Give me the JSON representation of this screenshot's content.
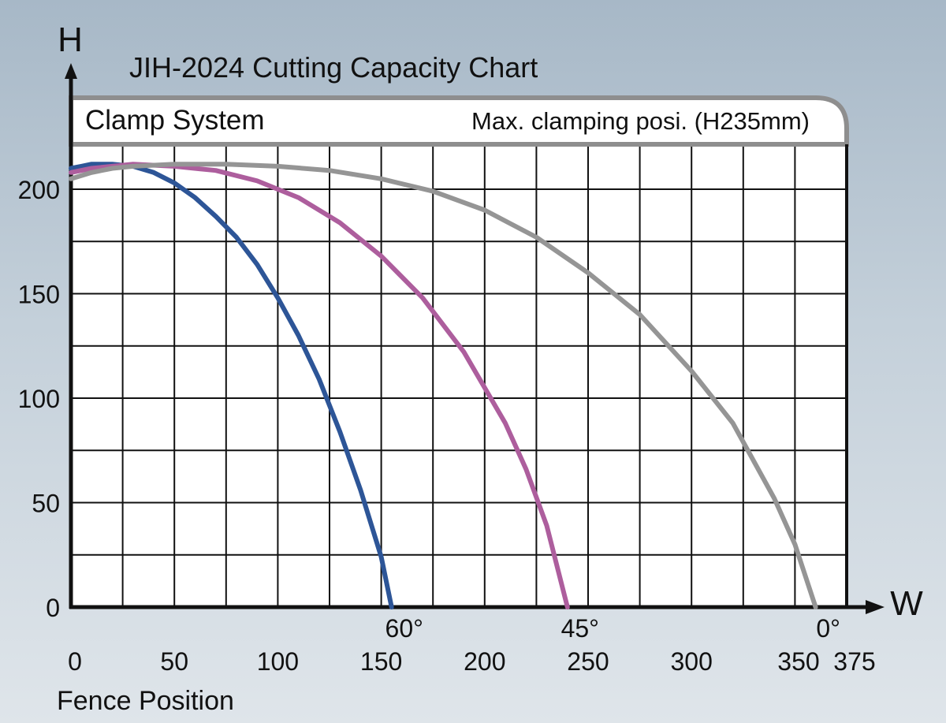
{
  "chart_data": {
    "type": "line",
    "title": "JIH-2024 Cutting Capacity Chart",
    "header_left": "Clamp System",
    "header_right": "Max. clamping posi. (H235mm)",
    "ylabel": "H",
    "xlabel_arrow": "W",
    "xlabel": "Fence Position",
    "xlim": [
      0,
      375
    ],
    "ylim": [
      0,
      200
    ],
    "x_ticks": [
      "0",
      "50",
      "100",
      "150",
      "200",
      "250",
      "300",
      "350",
      "375"
    ],
    "y_ticks": [
      "0",
      "50",
      "100",
      "150",
      "200"
    ],
    "grid": true,
    "series": [
      {
        "name": "60°",
        "color": "#2d5597",
        "x": [
          0,
          5,
          10,
          20,
          30,
          40,
          50,
          60,
          70,
          80,
          90,
          100,
          110,
          120,
          130,
          140,
          150,
          155
        ],
        "y": [
          210,
          211,
          212,
          212,
          211,
          208,
          203,
          196,
          187,
          177,
          164,
          148,
          130,
          109,
          84,
          56,
          24,
          0
        ]
      },
      {
        "name": "45°",
        "color": "#ad5e9d",
        "x": [
          0,
          10,
          20,
          30,
          50,
          70,
          90,
          110,
          130,
          150,
          170,
          190,
          210,
          220,
          230,
          240
        ],
        "y": [
          208,
          210,
          211,
          212,
          211,
          209,
          204,
          196,
          184,
          168,
          148,
          122,
          88,
          66,
          39,
          0
        ]
      },
      {
        "name": "0°",
        "color": "#959595",
        "x": [
          0,
          10,
          20,
          30,
          50,
          75,
          100,
          125,
          150,
          175,
          200,
          225,
          250,
          275,
          300,
          320,
          340,
          350,
          360
        ],
        "y": [
          205,
          208,
          210,
          211,
          212,
          212,
          211,
          209,
          205,
          199,
          190,
          177,
          160,
          140,
          113,
          88,
          52,
          30,
          0
        ]
      }
    ]
  }
}
